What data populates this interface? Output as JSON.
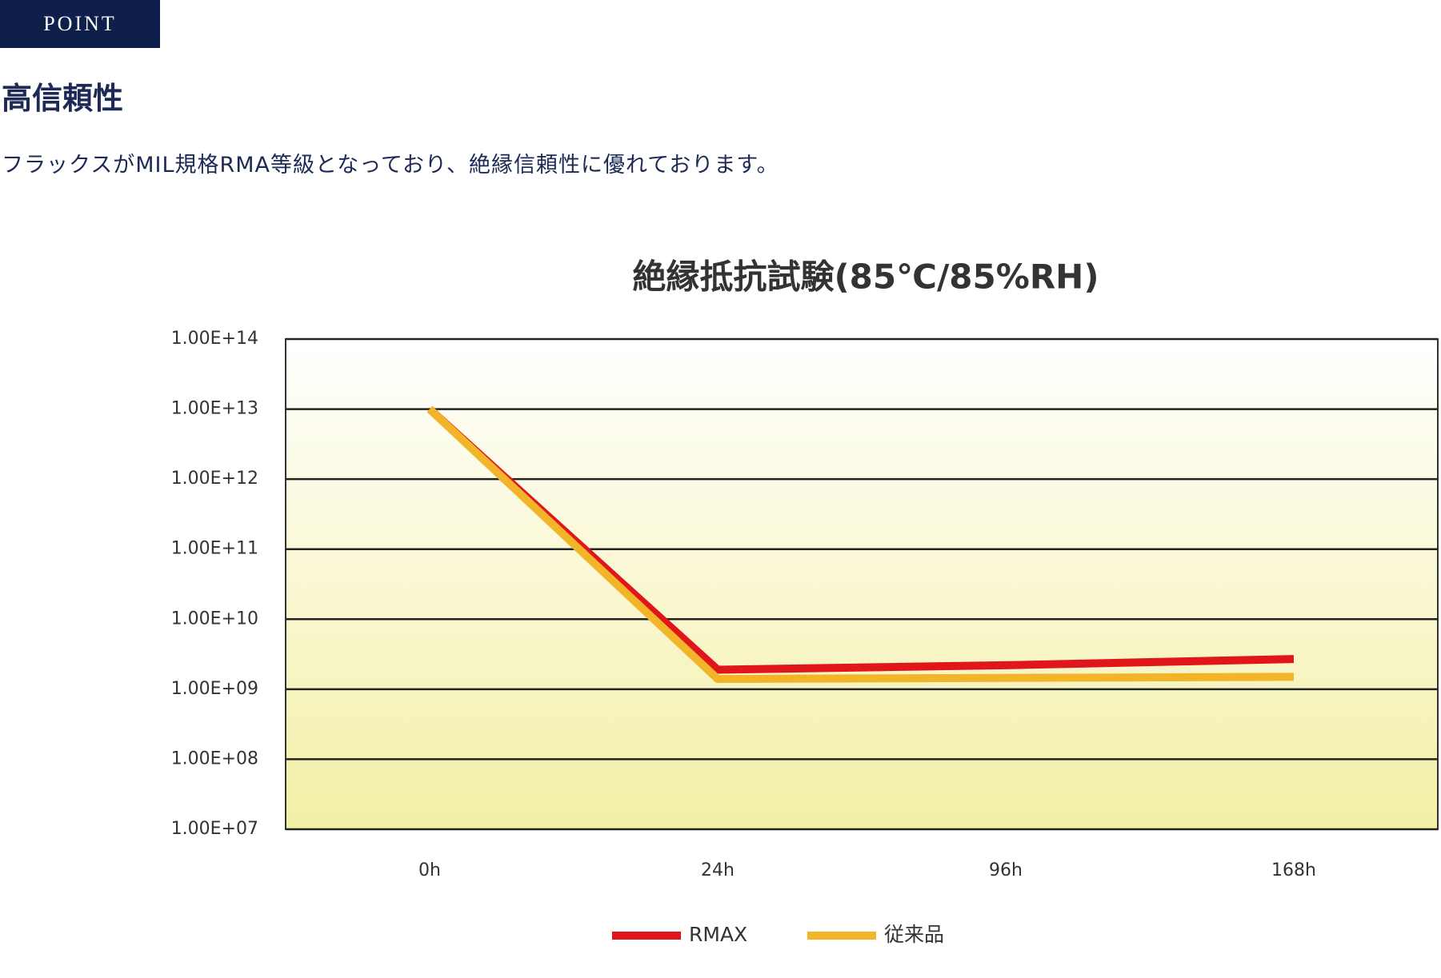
{
  "header": {
    "badge": "POINT",
    "title": "高信頼性",
    "description": "フラックスがMIL規格RMA等級となっており、絶縁信頼性に優れております。"
  },
  "chart_data": {
    "type": "line",
    "title": "絶縁抵抗試験(85℃/85%RH)",
    "categories": [
      "0h",
      "24h",
      "96h",
      "168h"
    ],
    "series": [
      {
        "name": "RMAX",
        "color": "#e0161b",
        "values": [
          10000000000000,
          1900000000,
          2200000000,
          2700000000
        ]
      },
      {
        "name": "従来品",
        "color": "#f2b52a",
        "values": [
          10000000000000,
          1400000000,
          1450000000,
          1500000000
        ]
      }
    ],
    "ylim": [
      10000000,
      100000000000000
    ],
    "yticks": [
      {
        "value": 10000000,
        "label": "1.00E+07"
      },
      {
        "value": 100000000,
        "label": "1.00E+08"
      },
      {
        "value": 1000000000,
        "label": "1.00E+09"
      },
      {
        "value": 10000000000,
        "label": "1.00E+10"
      },
      {
        "value": 100000000000,
        "label": "1.00E+11"
      },
      {
        "value": 1000000000000,
        "label": "1.00E+12"
      },
      {
        "value": 10000000000000,
        "label": "1.00E+13"
      },
      {
        "value": 100000000000000,
        "label": "1.00E+14"
      }
    ],
    "log_scale": true,
    "grid": true,
    "legend": "bottom"
  }
}
